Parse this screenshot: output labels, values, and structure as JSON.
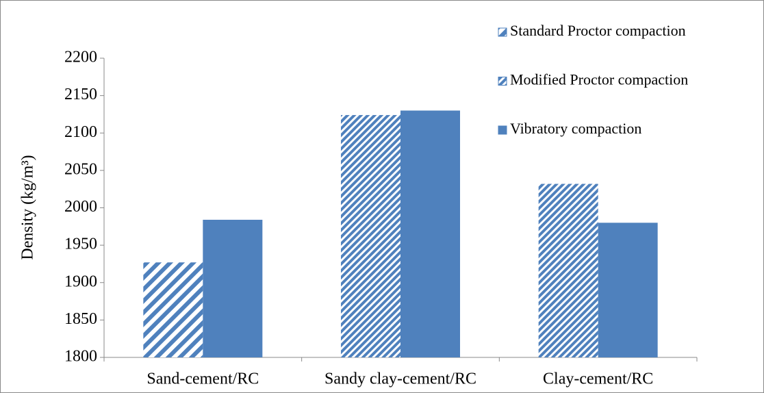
{
  "chart_data": {
    "type": "bar",
    "y_label": "Density (kg/m³)",
    "categories": [
      "Sand-cement/RC",
      "Sandy clay-cement/RC",
      "Clay-cement/RC"
    ],
    "series": [
      {
        "name": "Standard Proctor compaction",
        "color": "#4f81bd",
        "pattern": "wide-hatch",
        "values": [
          1927,
          null,
          null
        ]
      },
      {
        "name": "Modified Proctor compaction",
        "color": "#4f81bd",
        "pattern": "dense-hatch",
        "values": [
          null,
          2124,
          2032
        ]
      },
      {
        "name": "Vibratory compaction",
        "color": "#4f81bd",
        "pattern": "solid",
        "values": [
          1984,
          2130,
          1980
        ]
      }
    ],
    "ylim": [
      1800,
      2200
    ],
    "yticks": [
      1800,
      1850,
      1900,
      1950,
      2000,
      2050,
      2100,
      2150,
      2200
    ],
    "legend": "top-right"
  }
}
